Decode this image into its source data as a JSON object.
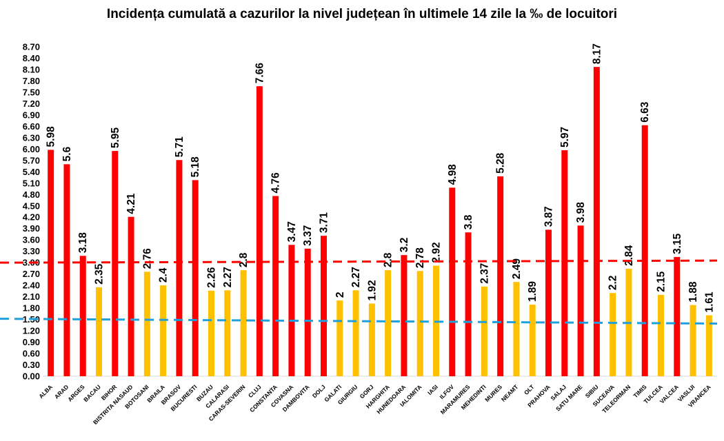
{
  "chart_data": {
    "type": "bar",
    "title": "Incidența cumulată a cazurilor la nivel județean în ultimele 14 zile la ‰ de locuitori",
    "xlabel": "",
    "ylabel": "",
    "ylim": [
      0,
      8.7
    ],
    "ytick_step": 0.3,
    "yticks": [
      "0.00",
      "0.30",
      "0.60",
      "0.90",
      "1.20",
      "1.50",
      "1.80",
      "2.10",
      "2.40",
      "2.70",
      "3.00",
      "3.30",
      "3.60",
      "3.90",
      "4.20",
      "4.50",
      "4.80",
      "5.10",
      "5.40",
      "5.70",
      "6.00",
      "6.30",
      "6.60",
      "6.90",
      "7.20",
      "7.50",
      "7.80",
      "8.10",
      "8.40",
      "8.70"
    ],
    "grid": false,
    "legend": "none",
    "categories": [
      "ALBA",
      "ARAD",
      "ARGES",
      "BACAU",
      "BIHOR",
      "BISTRITA NASAUD",
      "BOTOSANI",
      "BRAILA",
      "BRASOV",
      "BUCURESTI",
      "BUZAU",
      "CALARASI",
      "CARAS-SEVERIN",
      "CLUJ",
      "CONSTANTA",
      "COVASNA",
      "DAMBOVITA",
      "DOLJ",
      "GALATI",
      "GIURGIU",
      "GORJ",
      "HARGHITA",
      "HUNEDOARA",
      "IALOMITA",
      "IASI",
      "ILFOV",
      "MARAMURES",
      "MEHEDINTI",
      "MURES",
      "NEAMT",
      "OLT",
      "PRAHOVA",
      "SALAJ",
      "SATU MARE",
      "SIBIU",
      "SUCEAVA",
      "TELEORMAN",
      "TIMIS",
      "TULCEA",
      "VALCEA",
      "VASLUI",
      "VRANCEA"
    ],
    "values": [
      5.98,
      5.6,
      3.18,
      2.35,
      5.95,
      4.21,
      2.76,
      2.4,
      5.71,
      5.18,
      2.26,
      2.27,
      2.8,
      7.66,
      4.76,
      3.47,
      3.37,
      3.71,
      2,
      2.27,
      1.92,
      2.8,
      3.2,
      2.78,
      2.92,
      4.98,
      3.8,
      2.37,
      5.28,
      2.49,
      1.89,
      3.87,
      5.97,
      3.98,
      8.17,
      2.2,
      2.84,
      6.63,
      2.15,
      3.15,
      1.88,
      1.61
    ],
    "value_labels": [
      "5.98",
      "5.6",
      "3.18",
      "2.35",
      "5.95",
      "4.21",
      "2.76",
      "2.4",
      "5.71",
      "5.18",
      "2.26",
      "2.27",
      "2.8",
      "7.66",
      "4.76",
      "3.47",
      "3.37",
      "3.71",
      "2",
      "2.27",
      "1.92",
      "2.8",
      "3.2",
      "2.78",
      "2.92",
      "4.98",
      "3.8",
      "2.37",
      "5.28",
      "2.49",
      "1.89",
      "3.87",
      "5.97",
      "3.98",
      "8.17",
      "2.2",
      "2.84",
      "6.63",
      "2.15",
      "3.15",
      "1.88",
      "1.61"
    ],
    "threshold_high": 3,
    "threshold_low": 1.5,
    "colors": {
      "above": "#ff0000",
      "below": "#ffc000",
      "line_high": "#ff0000",
      "line_low": "#1fa0dc"
    }
  }
}
